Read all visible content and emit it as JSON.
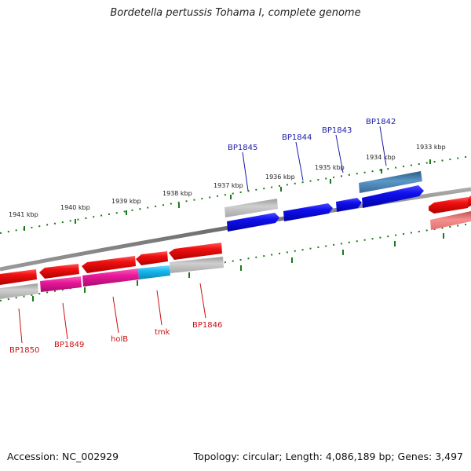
{
  "title": "Bordetella pertussis Tohama I, complete genome",
  "footer": {
    "accession": "Accession: NC_002929",
    "summary": "Topology: circular; Length: 4,086,189 bp; Genes: 3,497"
  },
  "ruler_labels": [
    "1941 kbp",
    "1940 kbp",
    "1939 kbp",
    "1938 kbp",
    "1937 kbp",
    "1936 kbp",
    "1935 kbp",
    "1934 kbp",
    "1933 kbp"
  ],
  "forward_gene_labels": [
    "BP1845",
    "BP1844",
    "BP1843",
    "BP1842"
  ],
  "reverse_gene_labels": [
    "BP1850",
    "BP1849",
    "holB",
    "tmk",
    "BP1846"
  ],
  "colors": {
    "forward_cds": "#1010e8",
    "reverse_cds": "#e80c0c",
    "magenta_cds": "#e01890",
    "cyan_cds": "#10b8e8",
    "steelblue_cds": "#4a88b8",
    "pink_cds": "#f08080",
    "gray_feature": "#b8b8b8",
    "backbone": "#808080",
    "ticks": "#1a7a1a",
    "label_forward": "#1a1aa8",
    "label_reverse": "#cc1010"
  }
}
